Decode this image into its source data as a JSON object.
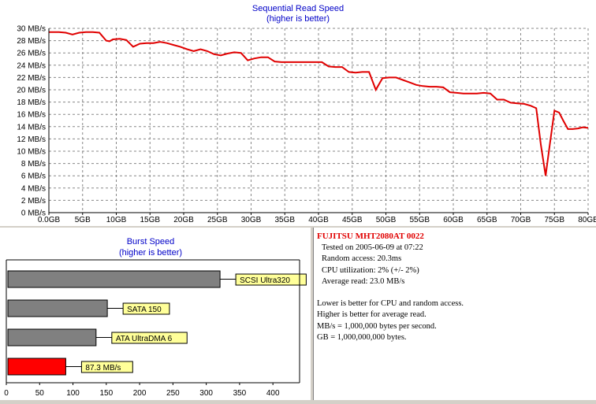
{
  "chart_data": [
    {
      "type": "line",
      "title": "Sequential Read Speed",
      "subtitle": "(higher is better)",
      "x_tick_labels": [
        "0.0GB",
        "5GB",
        "10GB",
        "15GB",
        "20GB",
        "25GB",
        "30GB",
        "35GB",
        "40GB",
        "45GB",
        "50GB",
        "55GB",
        "60GB",
        "65GB",
        "70GB",
        "75GB",
        "80GB"
      ],
      "y_tick_labels": [
        "0 MB/s",
        "2 MB/s",
        "4 MB/s",
        "6 MB/s",
        "8 MB/s",
        "10 MB/s",
        "12 MB/s",
        "14 MB/s",
        "16 MB/s",
        "18 MB/s",
        "20 MB/s",
        "22 MB/s",
        "24 MB/s",
        "26 MB/s",
        "28 MB/s",
        "30 MB/s"
      ],
      "xlim": [
        0,
        80
      ],
      "ylim": [
        0,
        30
      ],
      "grid": true,
      "series": [
        {
          "color": "#e00000",
          "x": [
            0,
            1.5,
            2.5,
            3.5,
            4.5,
            5.5,
            6.5,
            7.5,
            8.5,
            9.0,
            9.5,
            10.5,
            11.5,
            12.5,
            13.5,
            14.5,
            15.5,
            16.5,
            17.5,
            18.5,
            19.5,
            20.5,
            21.5,
            22.5,
            23.5,
            24.5,
            25.5,
            26.5,
            27.5,
            28.5,
            29.5,
            30.5,
            31.5,
            32.5,
            33.5,
            34.5,
            35.5,
            36.5,
            37.5,
            38.5,
            39.5,
            40.5,
            41.5,
            42.5,
            43.5,
            44.5,
            45.5,
            46.5,
            47.5,
            48.5,
            49.5,
            50.5,
            51.5,
            52.5,
            53.5,
            54.5,
            55.5,
            56.5,
            57.5,
            58.5,
            59.5,
            60.5,
            61.5,
            62.5,
            63.5,
            64.5,
            65.5,
            66.5,
            67.5,
            68.5,
            69.5,
            70.5,
            71.5,
            72.3,
            73.0,
            73.7,
            74.3,
            75.0,
            75.7,
            76.3,
            77.0,
            77.7,
            78.5,
            79.2,
            80
          ],
          "y": [
            29.4,
            29.4,
            29.3,
            29.0,
            29.3,
            29.4,
            29.4,
            29.3,
            28.0,
            27.9,
            28.2,
            28.3,
            28.1,
            27.0,
            27.5,
            27.6,
            27.6,
            27.8,
            27.6,
            27.3,
            27.0,
            26.6,
            26.3,
            26.6,
            26.3,
            25.8,
            25.6,
            25.9,
            26.1,
            26.0,
            24.8,
            25.1,
            25.3,
            25.3,
            24.6,
            24.5,
            24.5,
            24.5,
            24.5,
            24.5,
            24.5,
            24.5,
            23.8,
            23.7,
            23.7,
            22.9,
            22.8,
            22.9,
            22.9,
            20.0,
            21.9,
            22.0,
            22.0,
            21.6,
            21.2,
            20.8,
            20.6,
            20.5,
            20.5,
            20.4,
            19.6,
            19.5,
            19.4,
            19.4,
            19.4,
            19.5,
            19.4,
            18.4,
            18.4,
            17.9,
            17.8,
            17.7,
            17.4,
            17.0,
            11.0,
            6.0,
            11.0,
            16.6,
            16.3,
            15.0,
            13.6,
            13.6,
            13.7,
            13.9,
            13.8
          ]
        }
      ]
    },
    {
      "type": "bar",
      "orientation": "horizontal",
      "title": "Burst Speed",
      "subtitle": "(higher is better)",
      "x_tick_labels": [
        "0",
        "50",
        "100",
        "150",
        "200",
        "250",
        "300",
        "350",
        "400"
      ],
      "xlim": [
        0,
        440
      ],
      "grid": false,
      "bars": [
        {
          "label": "SCSI Ultra320",
          "value": 320,
          "color": "#808080"
        },
        {
          "label": "SATA 150",
          "value": 150,
          "color": "#808080"
        },
        {
          "label": "ATA UltraDMA 6",
          "value": 133,
          "color": "#808080"
        },
        {
          "label": "87.3 MB/s",
          "value": 87.3,
          "color": "#ff0000"
        }
      ]
    }
  ],
  "info": {
    "drive_name": "FUJITSU MHT2080AT 0022",
    "tested_on": "Tested on 2005-06-09 at 07:22",
    "random_access": "Random access: 20.3ms",
    "cpu_utilization": "CPU utilization: 2% (+/- 2%)",
    "average_read": "Average read: 23.0 MB/s",
    "note1": "Lower is better for CPU and random access.",
    "note2": "Higher is better for average read.",
    "note3": "MB/s = 1,000,000 bytes per second.",
    "note4": "GB = 1,000,000,000 bytes."
  },
  "colors": {
    "line": "#e00000",
    "title": "#0000c8",
    "bar_gray": "#808080",
    "bar_highlight": "#ff0000",
    "label_bg": "#ffff99"
  }
}
